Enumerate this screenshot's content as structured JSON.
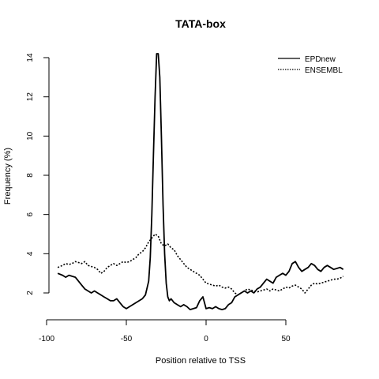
{
  "chart_data": {
    "type": "line",
    "title": "TATA-box",
    "xlabel": "Position relative to TSS",
    "ylabel": "Frequency (%)",
    "xlim": [
      -100,
      90
    ],
    "ylim": [
      1,
      14.5
    ],
    "x_ticks": [
      -100,
      -50,
      0,
      50
    ],
    "y_ticks": [
      2,
      4,
      6,
      8,
      10,
      12,
      14
    ],
    "legend_position": "top-right",
    "grid": false,
    "series": [
      {
        "name": "EPDnew",
        "line_style": "solid",
        "color": "#000000",
        "x": [
          -93,
          -90,
          -88,
          -86,
          -84,
          -82,
          -80,
          -78,
          -76,
          -74,
          -72,
          -70,
          -68,
          -66,
          -64,
          -62,
          -60,
          -58,
          -56,
          -54,
          -52,
          -50,
          -48,
          -46,
          -44,
          -42,
          -40,
          -38,
          -36,
          -35,
          -34,
          -33,
          -32,
          -31,
          -30,
          -29,
          -28,
          -27,
          -26,
          -25,
          -24,
          -23,
          -22,
          -20,
          -18,
          -16,
          -14,
          -12,
          -10,
          -8,
          -6,
          -4,
          -2,
          0,
          2,
          4,
          6,
          8,
          10,
          12,
          14,
          16,
          18,
          20,
          22,
          24,
          26,
          28,
          30,
          32,
          34,
          36,
          38,
          40,
          42,
          44,
          46,
          48,
          50,
          52,
          54,
          56,
          58,
          60,
          62,
          64,
          66,
          68,
          70,
          72,
          74,
          76,
          78,
          80,
          82,
          84,
          86
        ],
        "values": [
          3.0,
          2.9,
          2.8,
          2.9,
          2.85,
          2.8,
          2.6,
          2.4,
          2.2,
          2.1,
          2.0,
          2.1,
          2.0,
          1.9,
          1.8,
          1.7,
          1.6,
          1.6,
          1.7,
          1.5,
          1.3,
          1.2,
          1.3,
          1.4,
          1.5,
          1.6,
          1.7,
          1.9,
          2.6,
          3.8,
          6.0,
          9.0,
          12.0,
          14.2,
          14.2,
          13.0,
          10.0,
          6.5,
          4.0,
          2.5,
          1.8,
          1.6,
          1.7,
          1.5,
          1.4,
          1.3,
          1.4,
          1.3,
          1.15,
          1.2,
          1.25,
          1.6,
          1.8,
          1.2,
          1.25,
          1.2,
          1.3,
          1.2,
          1.15,
          1.2,
          1.4,
          1.5,
          1.8,
          1.9,
          2.0,
          2.1,
          2.0,
          2.1,
          2.0,
          2.2,
          2.3,
          2.5,
          2.7,
          2.6,
          2.5,
          2.8,
          2.9,
          3.0,
          2.9,
          3.1,
          3.5,
          3.6,
          3.3,
          3.1,
          3.2,
          3.3,
          3.5,
          3.4,
          3.2,
          3.1,
          3.3,
          3.4,
          3.3,
          3.2,
          3.25,
          3.3,
          3.2
        ]
      },
      {
        "name": "ENSEMBL",
        "line_style": "dotted",
        "color": "#000000",
        "x": [
          -93,
          -90,
          -88,
          -86,
          -84,
          -82,
          -80,
          -78,
          -76,
          -74,
          -72,
          -70,
          -68,
          -66,
          -64,
          -62,
          -60,
          -58,
          -56,
          -54,
          -52,
          -50,
          -48,
          -46,
          -44,
          -42,
          -40,
          -38,
          -36,
          -34,
          -32,
          -30,
          -28,
          -26,
          -24,
          -22,
          -20,
          -18,
          -16,
          -14,
          -12,
          -10,
          -8,
          -6,
          -4,
          -2,
          0,
          2,
          4,
          6,
          8,
          10,
          12,
          14,
          16,
          18,
          20,
          22,
          24,
          26,
          28,
          30,
          32,
          34,
          36,
          38,
          40,
          42,
          44,
          46,
          48,
          50,
          52,
          54,
          56,
          58,
          60,
          62,
          64,
          66,
          68,
          70,
          72,
          74,
          76,
          78,
          80,
          82,
          84,
          86
        ],
        "values": [
          3.3,
          3.4,
          3.5,
          3.45,
          3.5,
          3.6,
          3.55,
          3.5,
          3.6,
          3.4,
          3.35,
          3.3,
          3.2,
          3.0,
          3.1,
          3.3,
          3.4,
          3.5,
          3.4,
          3.5,
          3.6,
          3.55,
          3.6,
          3.7,
          3.8,
          4.0,
          4.1,
          4.3,
          4.6,
          4.8,
          5.0,
          4.9,
          4.5,
          4.4,
          4.5,
          4.3,
          4.2,
          3.9,
          3.7,
          3.5,
          3.3,
          3.2,
          3.1,
          3.0,
          2.9,
          2.7,
          2.5,
          2.45,
          2.4,
          2.35,
          2.4,
          2.3,
          2.25,
          2.3,
          2.2,
          2.0,
          1.9,
          2.0,
          2.1,
          2.2,
          2.15,
          2.1,
          2.05,
          2.1,
          2.15,
          2.2,
          2.1,
          2.2,
          2.15,
          2.1,
          2.2,
          2.3,
          2.25,
          2.35,
          2.4,
          2.3,
          2.2,
          2.0,
          2.2,
          2.4,
          2.5,
          2.45,
          2.5,
          2.55,
          2.6,
          2.65,
          2.7,
          2.7,
          2.75,
          2.85
        ]
      }
    ]
  }
}
